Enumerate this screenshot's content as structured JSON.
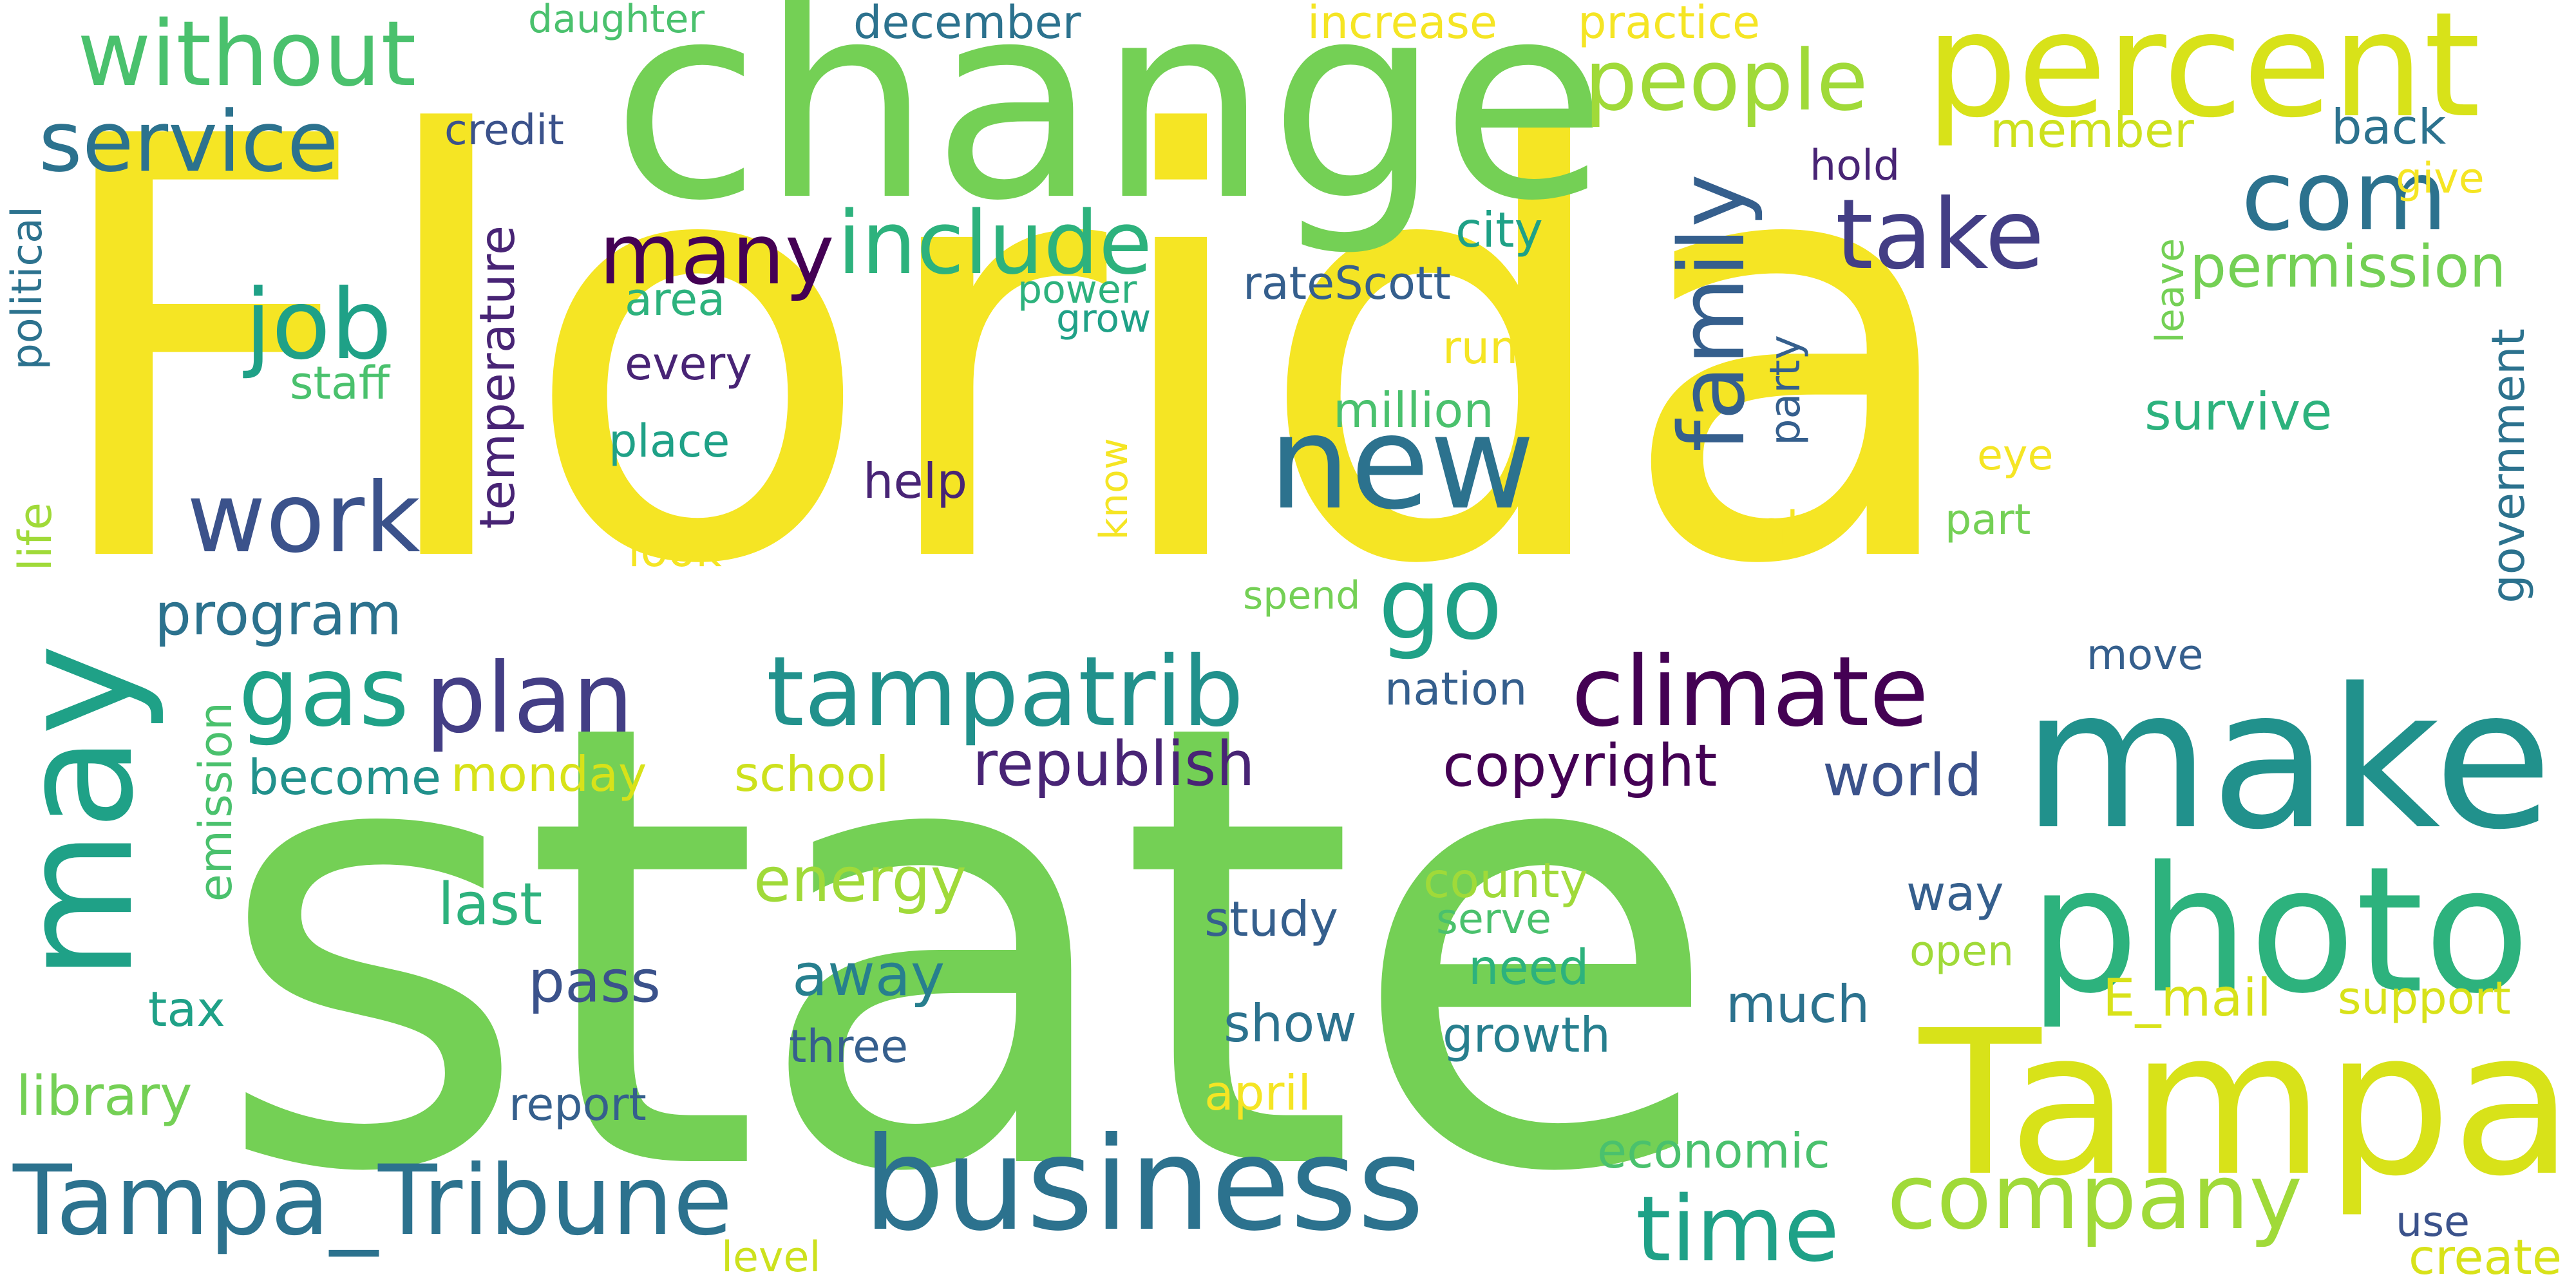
{
  "palette": {
    "yellow": "#f5e524",
    "yellow_green": "#cde11d",
    "light_green": "#a0da39",
    "green": "#74d055",
    "sea_green": "#4ac16d",
    "teal_green": "#2db27d",
    "teal": "#1fa187",
    "dark_teal": "#21918c",
    "steel_teal": "#277f8e",
    "blue_teal": "#2c728e",
    "slate_blue": "#355f8d",
    "indigo": "#3b528b",
    "purple_blue": "#433e85",
    "dark_purple": "#482475",
    "deep_purple": "#440154"
  },
  "words": [
    {
      "text": "Florida",
      "color": "#f5e524"
    },
    {
      "text": "state",
      "color": "#74d055"
    },
    {
      "text": "change",
      "color": "#74d055"
    },
    {
      "text": "percent",
      "color": "#d8e219"
    },
    {
      "text": "make",
      "color": "#21918c"
    },
    {
      "text": "Tampa",
      "color": "#d8e219"
    },
    {
      "text": "photo",
      "color": "#2db27d"
    },
    {
      "text": "may",
      "color": "#1fa187"
    },
    {
      "text": "business",
      "color": "#2c728e"
    },
    {
      "text": "new",
      "color": "#2c728e"
    },
    {
      "text": "Tampa_Tribune",
      "color": "#2c728e"
    },
    {
      "text": "tampatrib",
      "color": "#21918c"
    },
    {
      "text": "plan",
      "color": "#433e85"
    },
    {
      "text": "climate",
      "color": "#440154"
    },
    {
      "text": "company",
      "color": "#a0da39"
    },
    {
      "text": "time",
      "color": "#1fa187"
    },
    {
      "text": "without",
      "color": "#4ac16d"
    },
    {
      "text": "people",
      "color": "#a0da39"
    },
    {
      "text": "service",
      "color": "#2c728e"
    },
    {
      "text": "include",
      "color": "#2db27d"
    },
    {
      "text": "many",
      "color": "#440154"
    },
    {
      "text": "take",
      "color": "#433e85"
    },
    {
      "text": "com",
      "color": "#2c728e"
    },
    {
      "text": "job",
      "color": "#1fa187"
    },
    {
      "text": "work",
      "color": "#3b528b"
    },
    {
      "text": "go",
      "color": "#1fa187"
    },
    {
      "text": "family",
      "color": "#355f8d"
    },
    {
      "text": "gas",
      "color": "#1fa187"
    },
    {
      "text": "permission",
      "color": "#74d055"
    },
    {
      "text": "republish",
      "color": "#482475"
    },
    {
      "text": "copyright",
      "color": "#440154"
    },
    {
      "text": "world",
      "color": "#3b528b"
    },
    {
      "text": "program",
      "color": "#2c728e"
    },
    {
      "text": "temperature",
      "color": "#482475"
    },
    {
      "text": "energy",
      "color": "#a0da39"
    },
    {
      "text": "school",
      "color": "#cde11d"
    },
    {
      "text": "monday",
      "color": "#d8e219"
    },
    {
      "text": "become",
      "color": "#21918c"
    },
    {
      "text": "emission",
      "color": "#4ac16d"
    },
    {
      "text": "last",
      "color": "#2db27d"
    },
    {
      "text": "pass",
      "color": "#3b528b"
    },
    {
      "text": "away",
      "color": "#277f8e"
    },
    {
      "text": "three",
      "color": "#355f8d"
    },
    {
      "text": "show",
      "color": "#2c728e"
    },
    {
      "text": "study",
      "color": "#355f8d"
    },
    {
      "text": "growth",
      "color": "#277f8e"
    },
    {
      "text": "much",
      "color": "#2c728e"
    },
    {
      "text": "county",
      "color": "#a0da39"
    },
    {
      "text": "serve",
      "color": "#4ac16d"
    },
    {
      "text": "need",
      "color": "#2db27d"
    },
    {
      "text": "way",
      "color": "#355f8d"
    },
    {
      "text": "open",
      "color": "#a0da39"
    },
    {
      "text": "E_mail",
      "color": "#d8e219"
    },
    {
      "text": "support",
      "color": "#d8e219"
    },
    {
      "text": "library",
      "color": "#74d055"
    },
    {
      "text": "tax",
      "color": "#1fa187"
    },
    {
      "text": "report",
      "color": "#355f8d"
    },
    {
      "text": "april",
      "color": "#f5e524"
    },
    {
      "text": "economic",
      "color": "#4ac16d"
    },
    {
      "text": "level",
      "color": "#cde11d"
    },
    {
      "text": "use",
      "color": "#3b528b"
    },
    {
      "text": "create",
      "color": "#d8e219"
    },
    {
      "text": "daughter",
      "color": "#4ac16d"
    },
    {
      "text": "december",
      "color": "#2c728e"
    },
    {
      "text": "increase",
      "color": "#f5e524"
    },
    {
      "text": "practice",
      "color": "#f5e524"
    },
    {
      "text": "credit",
      "color": "#3b528b"
    },
    {
      "text": "member",
      "color": "#cde11d"
    },
    {
      "text": "back",
      "color": "#2c728e"
    },
    {
      "text": "hold",
      "color": "#482475"
    },
    {
      "text": "give",
      "color": "#f5e524"
    },
    {
      "text": "political",
      "color": "#2c728e"
    },
    {
      "text": "staff",
      "color": "#4ac16d"
    },
    {
      "text": "area",
      "color": "#2db27d"
    },
    {
      "text": "power",
      "color": "#2db27d"
    },
    {
      "text": "grow",
      "color": "#1fa187"
    },
    {
      "text": "rateScott",
      "color": "#355f8d"
    },
    {
      "text": "city",
      "color": "#1fa187"
    },
    {
      "text": "every",
      "color": "#482475"
    },
    {
      "text": "run",
      "color": "#f5e524"
    },
    {
      "text": "million",
      "color": "#4ac16d"
    },
    {
      "text": "place",
      "color": "#1fa187"
    },
    {
      "text": "help",
      "color": "#482475"
    },
    {
      "text": "party",
      "color": "#355f8d"
    },
    {
      "text": "leave",
      "color": "#74d055"
    },
    {
      "text": "survive",
      "color": "#2db27d"
    },
    {
      "text": "government",
      "color": "#2c728e"
    },
    {
      "text": "eye",
      "color": "#f5e524"
    },
    {
      "text": "part",
      "color": "#74d055"
    },
    {
      "text": "local",
      "color": "#f5e524"
    },
    {
      "text": "know",
      "color": "#f5e524"
    },
    {
      "text": "look",
      "color": "#f5e524"
    },
    {
      "text": "spend",
      "color": "#74d055"
    },
    {
      "text": "nation",
      "color": "#355f8d"
    },
    {
      "text": "move",
      "color": "#355f8d"
    },
    {
      "text": "life",
      "color": "#a0da39"
    }
  ]
}
